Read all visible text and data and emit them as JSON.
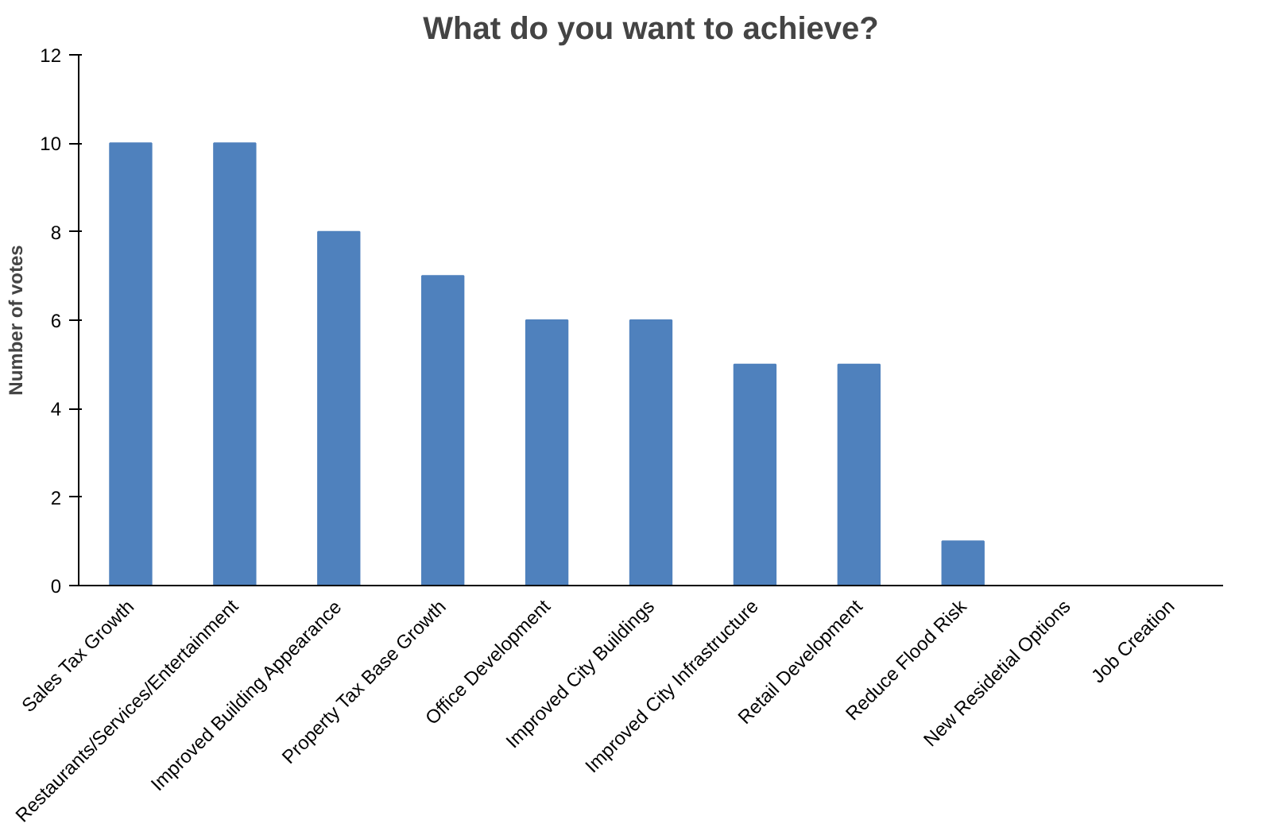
{
  "chart_data": {
    "type": "bar",
    "title": "What do you want to achieve?",
    "ylabel": "Number of votes",
    "categories": [
      "Sales Tax Growth",
      "Restaurants/Services/Entertainment",
      "Improved Building Appearance",
      "Property Tax Base Growth",
      "Office Development",
      "Improved City Buildings",
      "Improved City Infrastructure",
      "Retail Development",
      "Reduce Flood Risk",
      "New Residetial Options",
      "Job Creation"
    ],
    "values": [
      10,
      10,
      8,
      7,
      6,
      6,
      5,
      5,
      1,
      0,
      0
    ],
    "color": "#4f81bd",
    "ylim": [
      0,
      12
    ],
    "yticks": [
      0,
      2,
      4,
      6,
      8,
      10,
      12
    ],
    "grid": false
  }
}
